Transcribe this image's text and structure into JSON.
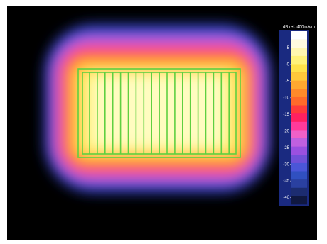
{
  "chart_data": {
    "type": "heatmap",
    "colorbar_title": "dB ref. 400mA/m",
    "clim": [
      -42,
      10
    ],
    "colorbar_ticks": [
      5,
      0,
      -5,
      -10,
      -15,
      -20,
      -25,
      -30,
      -35,
      -40
    ],
    "colors": [
      "#ffffff",
      "#fffbe0",
      "#fff7b0",
      "#fff27a",
      "#ffe24a",
      "#ffc83a",
      "#ffa830",
      "#ff8a2a",
      "#ff6a2a",
      "#ff3b3b",
      "#ff2060",
      "#ff3a9a",
      "#f060c8",
      "#c060e0",
      "#9a50e0",
      "#7050d8",
      "#4a56d8",
      "#3050c0",
      "#2a40a0",
      "#1c2c70",
      "#101840"
    ]
  }
}
